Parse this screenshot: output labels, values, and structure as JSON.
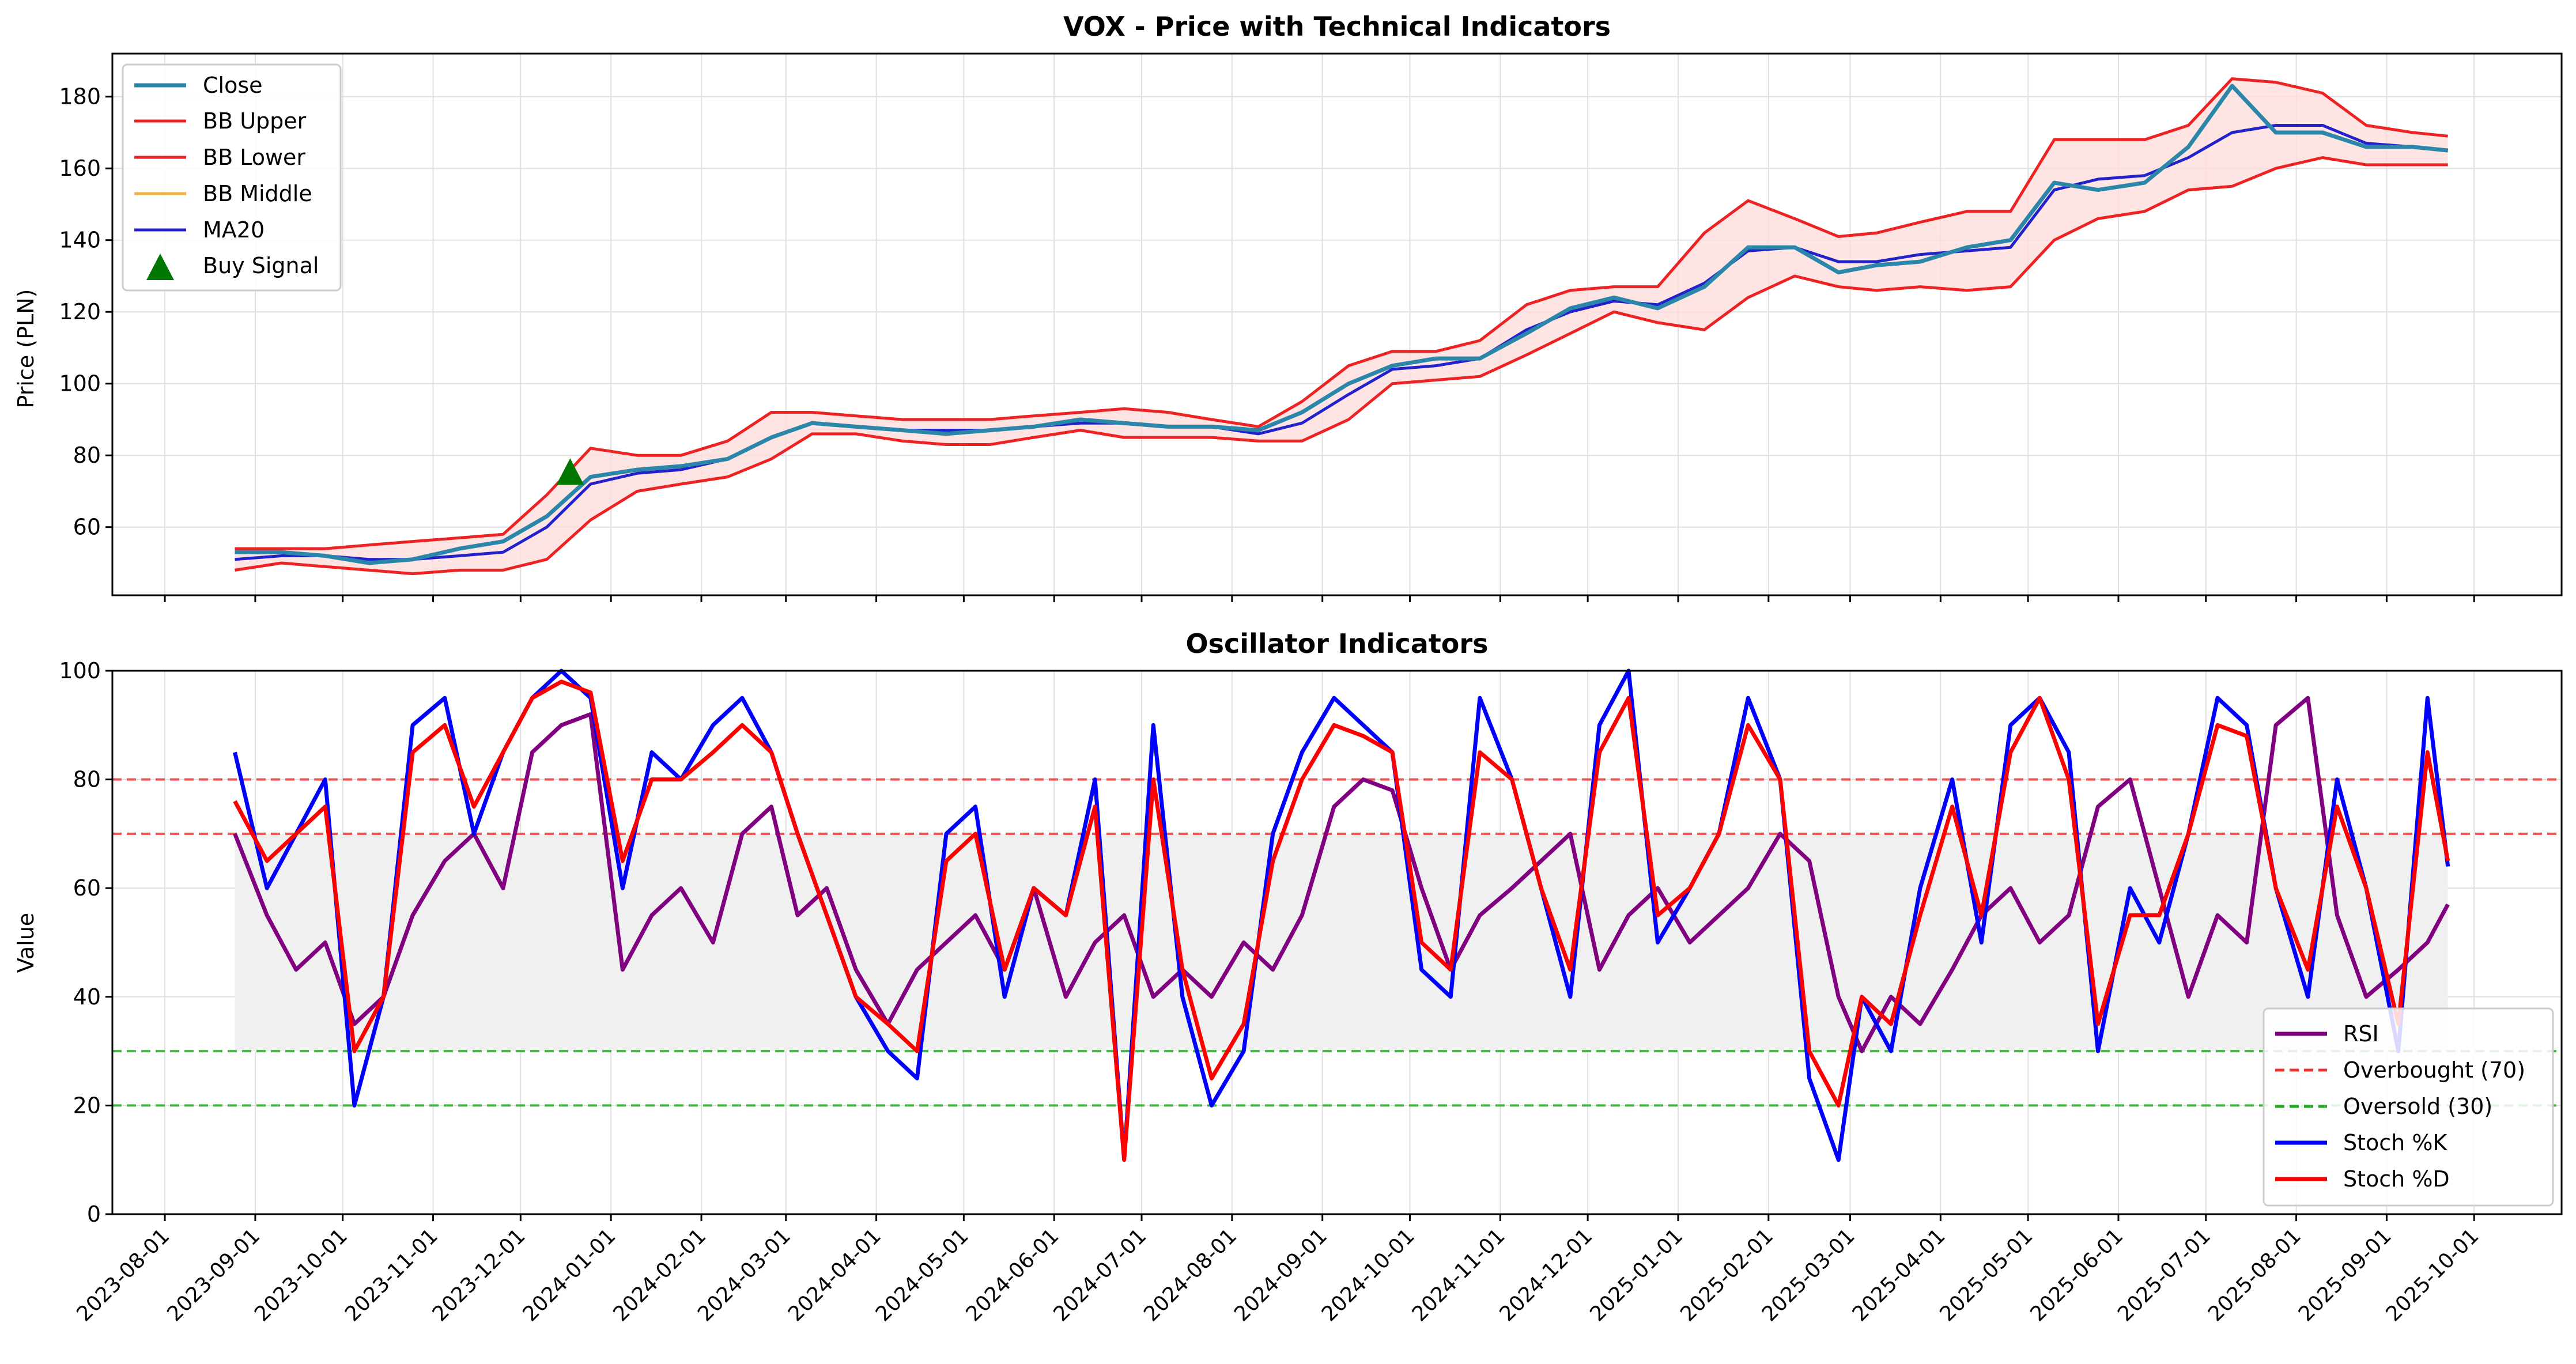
{
  "chart_data": [
    {
      "type": "line",
      "title": "VOX - Price with Technical Indicators",
      "xlabel": "",
      "ylabel": "Price (PLN)",
      "ylim": [
        41,
        192
      ],
      "yticks": [
        60,
        80,
        100,
        120,
        140,
        160,
        180
      ],
      "grid": true,
      "legend_position": "top-left",
      "legend": [
        "Close",
        "BB Upper",
        "BB Lower",
        "BB Middle",
        "MA20",
        "Buy Signal"
      ],
      "colors": {
        "close": "#2b87aa",
        "bb_upper": "#ee2222",
        "bb_lower": "#ee2222",
        "bb_middle": "#f5b041",
        "ma20": "#2222cc",
        "band_fill": "#ffdddd",
        "buy_signal": "#007700"
      },
      "x": [
        "2023-08-25",
        "2023-09-10",
        "2023-09-25",
        "2023-10-10",
        "2023-10-25",
        "2023-11-10",
        "2023-11-25",
        "2023-12-10",
        "2023-12-25",
        "2024-01-10",
        "2024-01-25",
        "2024-02-10",
        "2024-02-25",
        "2024-03-10",
        "2024-03-25",
        "2024-04-10",
        "2024-04-25",
        "2024-05-10",
        "2024-05-25",
        "2024-06-10",
        "2024-06-25",
        "2024-07-10",
        "2024-07-25",
        "2024-08-10",
        "2024-08-25",
        "2024-09-10",
        "2024-09-25",
        "2024-10-10",
        "2024-10-25",
        "2024-11-10",
        "2024-11-25",
        "2024-12-10",
        "2024-12-25",
        "2025-01-10",
        "2025-01-25",
        "2025-02-10",
        "2025-02-25",
        "2025-03-10",
        "2025-03-25",
        "2025-04-10",
        "2025-04-25",
        "2025-05-10",
        "2025-05-25",
        "2025-06-10",
        "2025-06-25",
        "2025-07-10",
        "2025-07-25",
        "2025-08-10",
        "2025-08-25",
        "2025-09-10",
        "2025-09-22"
      ],
      "series": [
        {
          "name": "Close",
          "values": [
            53,
            53,
            52,
            50,
            51,
            54,
            56,
            63,
            74,
            76,
            77,
            79,
            85,
            89,
            88,
            87,
            86,
            87,
            88,
            90,
            89,
            88,
            88,
            87,
            92,
            100,
            105,
            107,
            107,
            114,
            121,
            124,
            121,
            127,
            138,
            138,
            131,
            133,
            134,
            138,
            140,
            156,
            154,
            156,
            166,
            183,
            170,
            170,
            166,
            166,
            165
          ]
        },
        {
          "name": "BB Upper",
          "values": [
            54,
            54,
            54,
            55,
            56,
            57,
            58,
            69,
            82,
            80,
            80,
            84,
            92,
            92,
            91,
            90,
            90,
            90,
            91,
            92,
            93,
            92,
            90,
            88,
            95,
            105,
            109,
            109,
            112,
            122,
            126,
            127,
            127,
            142,
            151,
            146,
            141,
            142,
            145,
            148,
            148,
            168,
            168,
            168,
            172,
            185,
            184,
            181,
            172,
            170,
            169
          ]
        },
        {
          "name": "BB Lower",
          "values": [
            48,
            50,
            49,
            48,
            47,
            48,
            48,
            51,
            62,
            70,
            72,
            74,
            79,
            86,
            86,
            84,
            83,
            83,
            85,
            87,
            85,
            85,
            85,
            84,
            84,
            90,
            100,
            101,
            102,
            108,
            114,
            120,
            117,
            115,
            124,
            130,
            127,
            126,
            127,
            126,
            127,
            140,
            146,
            148,
            154,
            155,
            160,
            163,
            161,
            161,
            161
          ]
        },
        {
          "name": "BB Middle",
          "values": [
            51,
            52,
            52,
            51,
            51,
            52,
            53,
            60,
            72,
            75,
            76,
            79,
            85,
            89,
            88,
            87,
            87,
            87,
            88,
            89,
            89,
            88,
            88,
            86,
            89,
            97,
            104,
            105,
            107,
            115,
            120,
            123,
            122,
            128,
            137,
            138,
            134,
            134,
            136,
            137,
            138,
            154,
            157,
            158,
            163,
            170,
            172,
            172,
            167,
            166,
            165
          ]
        },
        {
          "name": "MA20",
          "values": [
            51,
            52,
            52,
            51,
            51,
            52,
            53,
            60,
            72,
            75,
            76,
            79,
            85,
            89,
            88,
            87,
            87,
            87,
            88,
            89,
            89,
            88,
            88,
            86,
            89,
            97,
            104,
            105,
            107,
            115,
            120,
            123,
            122,
            128,
            137,
            138,
            134,
            134,
            136,
            137,
            138,
            154,
            157,
            158,
            163,
            170,
            172,
            172,
            167,
            166,
            165
          ]
        }
      ],
      "markers": [
        {
          "name": "Buy Signal",
          "x": "2023-12-18",
          "y": 75
        }
      ]
    },
    {
      "type": "line",
      "title": "Oscillator Indicators",
      "xlabel": "",
      "ylabel": "Value",
      "ylim": [
        0,
        100
      ],
      "yticks": [
        0,
        20,
        40,
        60,
        80,
        100
      ],
      "grid": true,
      "legend_position": "bottom-right",
      "legend": [
        "RSI",
        "Overbought (70)",
        "Oversold (30)",
        "Stoch %K",
        "Stoch %D"
      ],
      "colors": {
        "rsi": "#800080",
        "overbought": "#ee3333",
        "oversold": "#22aa22",
        "stoch_k": "#0000ff",
        "stoch_d": "#ff0000",
        "neutral_fill": "#f0f0f0"
      },
      "reference_lines": [
        {
          "name": "Overbought (70)",
          "y": 70
        },
        {
          "name": "Oversold (30)",
          "y": 30
        },
        {
          "name": "",
          "y": 80
        },
        {
          "name": "",
          "y": 20
        }
      ],
      "neutral_band": [
        30,
        70
      ],
      "x": [
        "2023-08-25",
        "2023-09-05",
        "2023-09-15",
        "2023-09-25",
        "2023-10-05",
        "2023-10-15",
        "2023-10-25",
        "2023-11-05",
        "2023-11-15",
        "2023-11-25",
        "2023-12-05",
        "2023-12-15",
        "2023-12-25",
        "2024-01-05",
        "2024-01-15",
        "2024-01-25",
        "2024-02-05",
        "2024-02-15",
        "2024-02-25",
        "2024-03-05",
        "2024-03-15",
        "2024-03-25",
        "2024-04-05",
        "2024-04-15",
        "2024-04-25",
        "2024-05-05",
        "2024-05-15",
        "2024-05-25",
        "2024-06-05",
        "2024-06-15",
        "2024-06-25",
        "2024-07-05",
        "2024-07-15",
        "2024-07-25",
        "2024-08-05",
        "2024-08-15",
        "2024-08-25",
        "2024-09-05",
        "2024-09-15",
        "2024-09-25",
        "2024-10-05",
        "2024-10-15",
        "2024-10-25",
        "2024-11-05",
        "2024-11-15",
        "2024-11-25",
        "2024-12-05",
        "2024-12-15",
        "2024-12-25",
        "2025-01-05",
        "2025-01-15",
        "2025-01-25",
        "2025-02-05",
        "2025-02-15",
        "2025-02-25",
        "2025-03-05",
        "2025-03-15",
        "2025-03-25",
        "2025-04-05",
        "2025-04-15",
        "2025-04-25",
        "2025-05-05",
        "2025-05-15",
        "2025-05-25",
        "2025-06-05",
        "2025-06-15",
        "2025-06-25",
        "2025-07-05",
        "2025-07-15",
        "2025-07-25",
        "2025-08-05",
        "2025-08-15",
        "2025-08-25",
        "2025-09-05",
        "2025-09-15",
        "2025-09-22"
      ],
      "series": [
        {
          "name": "RSI",
          "values": [
            70,
            55,
            45,
            50,
            35,
            40,
            55,
            65,
            70,
            60,
            85,
            90,
            92,
            45,
            55,
            60,
            50,
            70,
            75,
            55,
            60,
            45,
            35,
            45,
            50,
            55,
            45,
            60,
            40,
            50,
            55,
            40,
            45,
            40,
            50,
            45,
            55,
            75,
            80,
            78,
            60,
            45,
            55,
            60,
            65,
            70,
            45,
            55,
            60,
            50,
            55,
            60,
            70,
            65,
            40,
            30,
            40,
            35,
            45,
            55,
            60,
            50,
            55,
            75,
            80,
            60,
            40,
            55,
            50,
            90,
            95,
            55,
            40,
            45,
            50,
            57
          ]
        },
        {
          "name": "Stoch %K",
          "values": [
            85,
            60,
            70,
            80,
            20,
            40,
            90,
            95,
            70,
            85,
            95,
            100,
            95,
            60,
            85,
            80,
            90,
            95,
            85,
            70,
            55,
            40,
            30,
            25,
            70,
            75,
            40,
            60,
            55,
            80,
            10,
            90,
            40,
            20,
            30,
            70,
            85,
            95,
            90,
            85,
            45,
            40,
            95,
            80,
            60,
            40,
            90,
            100,
            50,
            60,
            70,
            95,
            80,
            25,
            10,
            40,
            30,
            60,
            80,
            50,
            90,
            95,
            85,
            30,
            60,
            50,
            70,
            95,
            90,
            60,
            40,
            80,
            60,
            30,
            95,
            64
          ]
        },
        {
          "name": "Stoch %D",
          "values": [
            76,
            65,
            70,
            75,
            30,
            40,
            85,
            90,
            75,
            85,
            95,
            98,
            96,
            65,
            80,
            80,
            85,
            90,
            85,
            70,
            55,
            40,
            35,
            30,
            65,
            70,
            45,
            60,
            55,
            75,
            10,
            80,
            45,
            25,
            35,
            65,
            80,
            90,
            88,
            85,
            50,
            45,
            85,
            80,
            60,
            45,
            85,
            95,
            55,
            60,
            70,
            90,
            80,
            30,
            20,
            40,
            35,
            55,
            75,
            55,
            85,
            95,
            80,
            35,
            55,
            55,
            70,
            90,
            88,
            60,
            45,
            75,
            60,
            35,
            85,
            65
          ]
        }
      ]
    }
  ],
  "x_axis": {
    "tick_labels": [
      "2023-08-01",
      "2023-09-01",
      "2023-10-01",
      "2023-11-01",
      "2023-12-01",
      "2024-01-01",
      "2024-02-01",
      "2024-03-01",
      "2024-04-01",
      "2024-05-01",
      "2024-06-01",
      "2024-07-01",
      "2024-08-01",
      "2024-09-01",
      "2024-10-01",
      "2024-11-01",
      "2024-12-01",
      "2025-01-01",
      "2025-02-01",
      "2025-03-01",
      "2025-04-01",
      "2025-05-01",
      "2025-06-01",
      "2025-07-01",
      "2025-08-01",
      "2025-09-01",
      "2025-10-01"
    ]
  }
}
